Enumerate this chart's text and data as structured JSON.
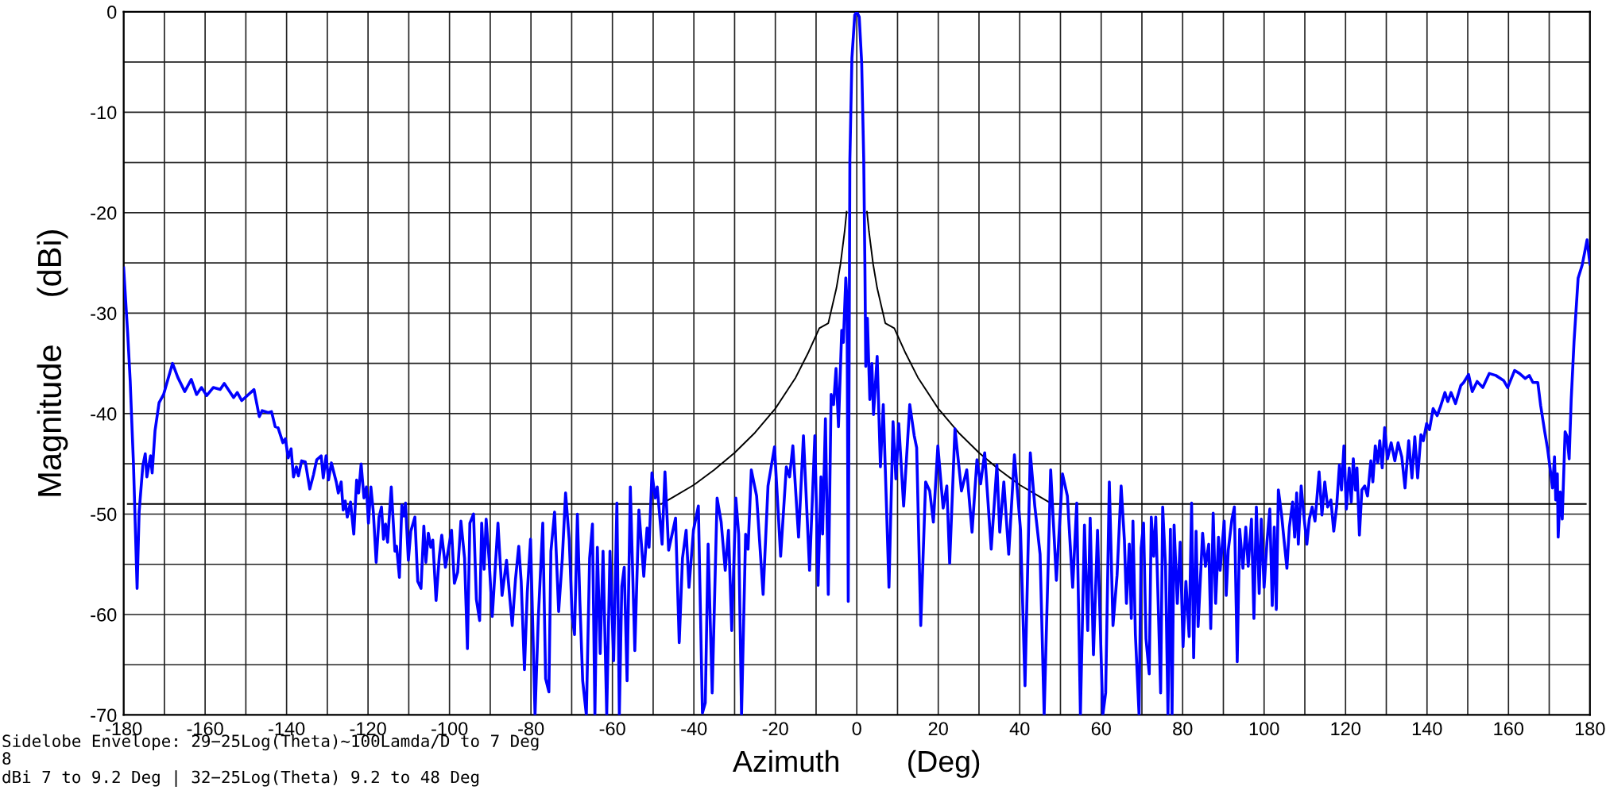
{
  "chart_data": {
    "type": "line",
    "xlabel": "Azimuth        (Deg)",
    "ylabel": "Magnitude     (dBi)",
    "xlim": [
      -180,
      180
    ],
    "ylim": [
      -70,
      0
    ],
    "xticks": [
      {
        "value": -180,
        "label": "-180"
      },
      {
        "value": -170,
        "label": null
      },
      {
        "value": -160,
        "label": "-160"
      },
      {
        "value": -150,
        "label": null
      },
      {
        "value": -140,
        "label": "-140"
      },
      {
        "value": -130,
        "label": null
      },
      {
        "value": -120,
        "label": "-120"
      },
      {
        "value": -110,
        "label": null
      },
      {
        "value": -100,
        "label": "-100"
      },
      {
        "value": -90,
        "label": null
      },
      {
        "value": -80,
        "label": "-80"
      },
      {
        "value": -70,
        "label": null
      },
      {
        "value": -60,
        "label": "-60"
      },
      {
        "value": -50,
        "label": null
      },
      {
        "value": -40,
        "label": "-40"
      },
      {
        "value": -30,
        "label": null
      },
      {
        "value": -20,
        "label": "-20"
      },
      {
        "value": -10,
        "label": null
      },
      0,
      {
        "value": 10,
        "label": null
      },
      20,
      {
        "value": 30,
        "label": null
      },
      40,
      {
        "value": 50,
        "label": null
      },
      60,
      {
        "value": 70,
        "label": null
      },
      80,
      {
        "value": 90,
        "label": null
      },
      100,
      {
        "value": 110,
        "label": null
      },
      120,
      {
        "value": 130,
        "label": null
      },
      140,
      {
        "value": 150,
        "label": null
      },
      160,
      {
        "value": 170,
        "label": null
      },
      180
    ],
    "yticks": [
      {
        "value": -70,
        "label": "-70"
      },
      {
        "value": -65,
        "label": null
      },
      {
        "value": -60,
        "label": "-60"
      },
      {
        "value": -55,
        "label": null
      },
      {
        "value": -50,
        "label": "-50"
      },
      {
        "value": -45,
        "label": null
      },
      {
        "value": -40,
        "label": "-40"
      },
      {
        "value": -35,
        "label": null
      },
      {
        "value": -30,
        "label": "-30"
      },
      {
        "value": -25,
        "label": null
      },
      {
        "value": -20,
        "label": "-20"
      },
      {
        "value": -15,
        "label": null
      },
      {
        "value": -10,
        "label": "-10"
      },
      {
        "value": -5,
        "label": null
      },
      0
    ],
    "grid": true,
    "legend": false,
    "marker": "none",
    "line_style": "solid",
    "annotations": [
      "Sidelobe Envelope: 29−25Log(Theta)~100Lamda/D to 7 Deg",
      "8",
      "dBi 7 to 9.2 Deg | 32−25Log(Theta) 9.2 to 48 Deg"
    ],
    "series": [
      {
        "color": "#000000",
        "x": [
          -179,
          -48,
          -45,
          -40,
          -35,
          -30,
          -25,
          -20,
          -15,
          -12,
          -9.2,
          -7,
          -5,
          -4,
          -3,
          -2.5,
          -1.8,
          0,
          1.8,
          2.5,
          3,
          4,
          5,
          7,
          9.2,
          12,
          15,
          20,
          25,
          30,
          35,
          40,
          45,
          48,
          179
        ],
        "values": [
          -49,
          -49,
          -48.3,
          -47.1,
          -45.6,
          -43.9,
          -41.9,
          -39.5,
          -36.4,
          -34.0,
          -31.5,
          -31.0,
          -27.5,
          -25.1,
          -21.9,
          -19.9,
          null,
          null,
          null,
          -19.9,
          -21.9,
          -25.1,
          -27.5,
          -31.0,
          -31.5,
          -34.0,
          -36.4,
          -39.5,
          -41.9,
          -43.9,
          -45.6,
          -47.1,
          -48.3,
          -49,
          -49
        ]
      },
      {
        "color": "#0000ff",
        "x": [
          -180,
          -179,
          -178.4,
          -177.9,
          -177.6,
          -176.7,
          -176.2,
          -175.3,
          -174.7,
          -174.3,
          -173.4,
          -173.0,
          -172.3,
          -171.3,
          -170.2,
          -169.5,
          -168.0,
          -166.7,
          -165.0,
          -163.4,
          -162.1,
          -160.9,
          -159.6,
          -158.0,
          -156.3,
          -155.3,
          -153.0,
          -152.1,
          -151.0,
          -148.0,
          -146.7,
          -146.0,
          -144.5,
          -143.7,
          -142.8,
          -142.1,
          -140.9,
          -140.3,
          -139.6,
          -138.9,
          -138.3,
          -137.6,
          -137.1,
          -136.3,
          -135.4,
          -134.3,
          -133.4,
          -132.6,
          -131.5,
          -131.0,
          -130.3,
          -129.7,
          -129.0,
          -127.8,
          -127.3,
          -126.6,
          -126.1,
          -125.6,
          -125.1,
          -124.3,
          -123.5,
          -122.8,
          -122.3,
          -121.7,
          -121.0,
          -120.4,
          -119.9,
          -119.3,
          -118.7,
          -118.0,
          -117.3,
          -116.7,
          -116.2,
          -115.7,
          -115.2,
          -114.3,
          -113.4,
          -113.0,
          -112.3,
          -111.7,
          -111.2,
          -110.8,
          -110.1,
          -109.5,
          -108.5,
          -107.8,
          -107.0,
          -106.3,
          -105.8,
          -105.2,
          -104.6,
          -104.1,
          -103.3,
          -102.5,
          -101.9,
          -101.0,
          -99.5,
          -98.8,
          -98.0,
          -97.2,
          -96.3,
          -95.6,
          -95.0,
          -94.1,
          -93.4,
          -92.6,
          -92.1,
          -91.5,
          -91.0,
          -90.3,
          -89.5,
          -88.1,
          -87.1,
          -86.0,
          -84.6,
          -83.8,
          -83.0,
          -82.4,
          -81.6,
          -80.9,
          -80.1,
          -79.0,
          -78.2,
          -77.1,
          -76.4,
          -75.6,
          -75.1,
          -74.2,
          -73.2,
          -72.3,
          -71.5,
          -70.6,
          -69.9,
          -69.3,
          -68.6,
          -68.0,
          -67.3,
          -66.4,
          -65.6,
          -64.9,
          -64.3,
          -63.7,
          -63.0,
          -62.3,
          -61.4,
          -60.6,
          -59.7,
          -58.9,
          -58.3,
          -57.7,
          -57.1,
          -56.4,
          -55.6,
          -54.5,
          -53.5,
          -52.3,
          -51.5,
          -51.0,
          -50.3,
          -49.5,
          -49.0,
          -47.8,
          -47.1,
          -46.2,
          -44.5,
          -43.6,
          -42.8,
          -41.9,
          -41.2,
          -40.1,
          -38.9,
          -37.9,
          -37.2,
          -36.5,
          -35.5,
          -34.3,
          -33.3,
          -32.3,
          -31.5,
          -30.7,
          -29.7,
          -29.0,
          -28.3,
          -27.3,
          -26.7,
          -25.9,
          -24.6,
          -23.0,
          -21.8,
          -20.2,
          -18.7,
          -17.3,
          -16.5,
          -15.7,
          -14.3,
          -13.1,
          -11.6,
          -10.3,
          -9.5,
          -8.8,
          -8.4,
          -7.7,
          -7.0,
          -6.3,
          -5.7,
          -5.1,
          -4.5,
          -3.7,
          -3.3,
          -2.7,
          -2.4,
          -2.1,
          -1.7,
          -1.2,
          -0.5,
          0,
          0.6,
          1.2,
          1.7,
          2.0,
          2.2,
          2.6,
          3.2,
          3.7,
          4.1,
          5.0,
          5.8,
          6.5,
          7.3,
          7.9,
          8.9,
          9.6,
          10.3,
          11.5,
          13.0,
          14.1,
          14.7,
          15.7,
          16.9,
          17.9,
          18.8,
          19.9,
          21.2,
          22.1,
          22.8,
          24.1,
          25.7,
          27.0,
          28.3,
          29.5,
          30.4,
          31.4,
          33.0,
          34.4,
          35.1,
          36.1,
          37.3,
          38.7,
          40.2,
          41.3,
          42.6,
          43.7,
          45.0,
          46.0,
          47.6,
          49.0,
          50.5,
          51.7,
          53.0,
          54.0,
          54.9,
          55.9,
          56.7,
          57.3,
          58.1,
          59.1,
          60.4,
          61.1,
          62.0,
          62.9,
          63.9,
          64.9,
          65.7,
          66.2,
          66.9,
          67.4,
          67.8,
          68.4,
          69.3,
          69.8,
          70.4,
          71.0,
          71.8,
          72.3,
          72.9,
          73.4,
          73.9,
          74.6,
          75.1,
          75.8,
          76.4,
          77.0,
          77.4,
          77.9,
          78.7,
          79.4,
          80.1,
          80.8,
          81.6,
          82.2,
          82.7,
          83.3,
          83.8,
          84.9,
          85.6,
          86.4,
          86.9,
          87.5,
          88.1,
          88.8,
          89.2,
          90.2,
          90.7,
          91.2,
          92.1,
          92.7,
          93.4,
          94.0,
          94.8,
          95.5,
          96.1,
          96.9,
          97.5,
          98.1,
          98.8,
          99.3,
          100.0,
          100.7,
          101.4,
          102.0,
          102.5,
          103.0,
          103.5,
          104.3,
          104.9,
          105.6,
          106.2,
          107.0,
          107.5,
          108.0,
          108.4,
          109.1,
          109.9,
          110.5,
          111.1,
          111.8,
          112.5,
          113.5,
          114.2,
          114.9,
          115.6,
          116.4,
          117.1,
          117.8,
          118.5,
          119.0,
          119.6,
          120.2,
          120.9,
          121.4,
          121.9,
          122.4,
          122.8,
          123.4,
          124.0,
          124.7,
          125.4,
          126.2,
          126.7,
          127.3,
          127.9,
          128.4,
          129.0,
          129.6,
          130.3,
          131.2,
          132.1,
          132.9,
          133.8,
          134.6,
          135.5,
          136.3,
          137.0,
          137.7,
          138.5,
          139.1,
          139.9,
          140.6,
          141.5,
          142.5,
          143.3,
          144.4,
          145.1,
          145.9,
          147.0,
          148.3,
          149.0,
          150.2,
          151.1,
          152.3,
          153.7,
          155.3,
          156.9,
          158.8,
          159.8,
          161.5,
          162.7,
          164.1,
          165.1,
          166.0,
          167.2,
          167.9,
          168.9,
          169.6,
          170.4,
          170.8,
          171.3,
          171.6,
          172.0,
          172.2,
          172.7,
          173.2,
          173.9,
          174.4,
          174.9,
          175.4,
          176.1,
          177.1,
          178.1,
          179.3,
          180
        ],
        "values": [
          -25.5,
          -32.1,
          -36.7,
          -41.9,
          -44.9,
          -57.4,
          -49.8,
          -45.2,
          -44.0,
          -46.3,
          -44.2,
          -45.9,
          -41.7,
          -38.9,
          -38.1,
          -37.1,
          -35.0,
          -36.4,
          -37.8,
          -36.6,
          -38.1,
          -37.4,
          -38.2,
          -37.4,
          -37.6,
          -37.0,
          -38.4,
          -37.9,
          -38.7,
          -37.6,
          -40.3,
          -39.7,
          -39.9,
          -39.8,
          -41.3,
          -41.4,
          -42.9,
          -42.5,
          -44.4,
          -43.5,
          -46.3,
          -45.3,
          -46.2,
          -44.7,
          -44.8,
          -47.5,
          -46.1,
          -44.6,
          -44.2,
          -46.4,
          -44.2,
          -46.6,
          -44.9,
          -46.8,
          -47.9,
          -46.8,
          -49.6,
          -48.7,
          -50.3,
          -48.8,
          -52.0,
          -46.6,
          -47.9,
          -45.0,
          -48.4,
          -47.3,
          -50.9,
          -47.3,
          -49.8,
          -54.8,
          -50.3,
          -49.3,
          -52.5,
          -51.0,
          -52.8,
          -47.3,
          -53.7,
          -53.2,
          -56.3,
          -49.1,
          -50.2,
          -48.9,
          -54.6,
          -51.7,
          -50.3,
          -56.7,
          -57.4,
          -51.2,
          -54.8,
          -51.9,
          -53.3,
          -52.6,
          -58.6,
          -54.2,
          -52.1,
          -55.3,
          -51.6,
          -56.9,
          -55.8,
          -50.7,
          -54.4,
          -63.4,
          -50.9,
          -50.0,
          -58.5,
          -60.6,
          -50.9,
          -55.5,
          -50.5,
          -54.4,
          -60.2,
          -50.9,
          -58.1,
          -54.6,
          -61.1,
          -56.5,
          -53.2,
          -56.7,
          -65.5,
          -57.8,
          -52.5,
          -70,
          -60.4,
          -50.9,
          -66.4,
          -67.7,
          -53.7,
          -49.8,
          -59.7,
          -54.4,
          -47.9,
          -52.6,
          -60.1,
          -62.0,
          -50.0,
          -58.6,
          -66.6,
          -70,
          -54.4,
          -51.0,
          -70,
          -53.3,
          -63.9,
          -53.7,
          -70,
          -53.7,
          -64.6,
          -48.9,
          -70,
          -57.2,
          -55.3,
          -66.6,
          -47.3,
          -63.6,
          -49.6,
          -56.2,
          -51.4,
          -53.3,
          -45.9,
          -48.4,
          -47.3,
          -53.0,
          -45.8,
          -53.6,
          -50.4,
          -62.8,
          -54.4,
          -51.6,
          -57.3,
          -51.6,
          -49.2,
          -69.8,
          -68.8,
          -53.0,
          -67.8,
          -48.4,
          -50.8,
          -55.6,
          -51.6,
          -61.6,
          -48.4,
          -52.0,
          -70,
          -52.0,
          -53.5,
          -45.6,
          -48.2,
          -58.0,
          -47.2,
          -43.3,
          -54.2,
          -45.3,
          -46.3,
          -43.2,
          -52.3,
          -42.2,
          -55.6,
          -42.2,
          -57.1,
          -46.3,
          -52.0,
          -40.5,
          -58.0,
          -38.1,
          -39.1,
          -35.5,
          -41.3,
          -31.7,
          -32.9,
          -26.5,
          -28.8,
          -58.7,
          -14.7,
          -4.6,
          -0.3,
          0,
          -0.5,
          -5.1,
          -14.7,
          -25.7,
          -35.3,
          -30.5,
          -38.6,
          -35.0,
          -40.1,
          -34.3,
          -45.3,
          -39.1,
          -49.4,
          -57.3,
          -40.8,
          -46.5,
          -41.0,
          -49.2,
          -39.1,
          -42.2,
          -43.4,
          -61.1,
          -46.8,
          -47.7,
          -50.8,
          -43.2,
          -49.4,
          -47.2,
          -54.9,
          -41.5,
          -47.7,
          -45.6,
          -51.8,
          -44.6,
          -47.0,
          -43.9,
          -53.5,
          -45.1,
          -51.8,
          -46.8,
          -54.0,
          -44.1,
          -51.6,
          -67.1,
          -43.9,
          -49.2,
          -54.0,
          -70,
          -45.6,
          -56.6,
          -46.0,
          -48.2,
          -57.3,
          -48.9,
          -70,
          -51.1,
          -61.6,
          -50.4,
          -64.0,
          -51.6,
          -70,
          -67.8,
          -46.8,
          -61.1,
          -56.1,
          -47.2,
          -52.6,
          -58.9,
          -53.0,
          -60.4,
          -50.7,
          -62.0,
          -70,
          -53.4,
          -50.9,
          -62.4,
          -65.9,
          -50.3,
          -54.2,
          -50.3,
          -57.5,
          -67.8,
          -49.3,
          -55.2,
          -70,
          -51.5,
          -70,
          -51.1,
          -58.9,
          -52.8,
          -63.2,
          -56.7,
          -62.2,
          -48.9,
          -64.3,
          -51.7,
          -61.2,
          -51.9,
          -55.2,
          -53.0,
          -61.4,
          -49.9,
          -58.9,
          -52.3,
          -55.6,
          -50.7,
          -58.1,
          -53.6,
          -50.5,
          -49.3,
          -64.7,
          -51.5,
          -55.4,
          -51.3,
          -55.2,
          -50.5,
          -60.4,
          -49.3,
          -57.9,
          -50.5,
          -57.3,
          -52.8,
          -49.5,
          -59.1,
          -51.3,
          -59.5,
          -47.6,
          -50.1,
          -52.6,
          -55.4,
          -51.3,
          -48.8,
          -52.3,
          -47.9,
          -53.0,
          -47.2,
          -50.7,
          -53.0,
          -50.5,
          -49.3,
          -50.7,
          -45.8,
          -50.1,
          -46.8,
          -49.3,
          -48.6,
          -51.7,
          -49.3,
          -45.1,
          -47.6,
          -43.2,
          -49.5,
          -45.4,
          -48.8,
          -44.5,
          -47.6,
          -45.4,
          -52.1,
          -47.6,
          -47.2,
          -48.2,
          -44.7,
          -46.8,
          -43.2,
          -44.9,
          -42.7,
          -45.4,
          -41.4,
          -44.5,
          -42.9,
          -44.7,
          -42.9,
          -44.3,
          -47.4,
          -42.7,
          -46.4,
          -42.3,
          -46.4,
          -42.1,
          -42.7,
          -41.0,
          -41.6,
          -39.5,
          -40.2,
          -39.3,
          -37.9,
          -38.8,
          -37.9,
          -39.0,
          -37.2,
          -36.9,
          -36.1,
          -37.8,
          -36.8,
          -37.4,
          -36.0,
          -36.2,
          -36.7,
          -37.4,
          -35.7,
          -36.0,
          -36.5,
          -36.2,
          -36.9,
          -36.9,
          -39.2,
          -41.8,
          -43.5,
          -46.0,
          -47.4,
          -44.3,
          -48.6,
          -46.0,
          -52.3,
          -47.8,
          -50.5,
          -41.8,
          -42.3,
          -44.5,
          -38.6,
          -32.8,
          -26.5,
          -25.2,
          -22.7,
          -25.1
        ]
      }
    ]
  }
}
